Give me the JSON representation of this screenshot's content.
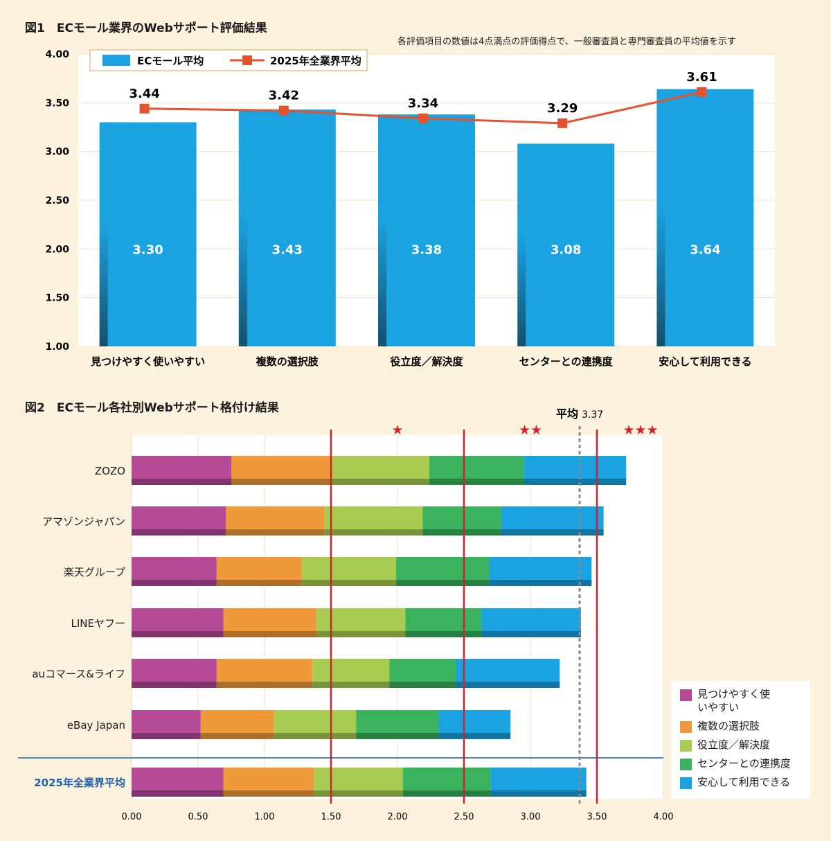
{
  "figure1": {
    "title": "図1　ECモール業界のWebサポート評価結果",
    "note": "各評価項目の数値は4点満点の評価得点で、一般審査員と専門審査員の平均値を示す",
    "chart_data": {
      "type": "bar",
      "categories": [
        "見つけやすく使いやすい",
        "複数の選択肢",
        "役立度／解決度",
        "センターとの連携度",
        "安心して利用できる"
      ],
      "series": [
        {
          "name": "ECモール平均",
          "kind": "bar",
          "values": [
            3.3,
            3.43,
            3.38,
            3.08,
            3.64
          ],
          "labels": [
            "3.30",
            "3.43",
            "3.38",
            "3.08",
            "3.64"
          ],
          "color": "#1aa3e0"
        },
        {
          "name": "2025年全業界平均",
          "kind": "line",
          "values": [
            3.44,
            3.42,
            3.34,
            3.29,
            3.61
          ],
          "labels": [
            "3.44",
            "3.42",
            "3.34",
            "3.29",
            "3.61"
          ],
          "color": "#e5522e"
        }
      ],
      "ylim": [
        1.0,
        4.0
      ],
      "yticks": [
        "1.00",
        "1.50",
        "2.00",
        "2.50",
        "3.00",
        "3.50",
        "4.00"
      ],
      "legend": "top-left",
      "grid": true
    }
  },
  "figure2": {
    "title": "図2　ECモール各社別Webサポート格付け結果",
    "average_label": "平均",
    "average_value_label": "3.37",
    "average_value": 3.37,
    "chart_data": {
      "type": "bar",
      "orientation": "horizontal",
      "stacked": true,
      "categories": [
        "ZOZO",
        "アマゾンジャパン",
        "楽天グループ",
        "LINEヤフー",
        "auコマース&ライフ",
        "eBay Japan",
        "2025年全業界平均"
      ],
      "series": [
        {
          "name": "見つけやすく使いやすい",
          "color": "#b54a97",
          "values": [
            0.75,
            0.71,
            0.64,
            0.69,
            0.64,
            0.52,
            0.69
          ]
        },
        {
          "name": "複数の選択肢",
          "color": "#f0993a",
          "values": [
            0.75,
            0.74,
            0.64,
            0.7,
            0.72,
            0.55,
            0.68
          ]
        },
        {
          "name": "役立度／解決度",
          "color": "#a8cc52",
          "values": [
            0.74,
            0.74,
            0.71,
            0.67,
            0.58,
            0.62,
            0.67
          ]
        },
        {
          "name": "センターとの連携度",
          "color": "#3ab25e",
          "values": [
            0.71,
            0.59,
            0.7,
            0.57,
            0.5,
            0.62,
            0.66
          ]
        },
        {
          "name": "安心して利用できる",
          "color": "#1aa3e0",
          "values": [
            0.77,
            0.77,
            0.77,
            0.75,
            0.78,
            0.54,
            0.72
          ]
        }
      ],
      "xlim": [
        0,
        4.0
      ],
      "xticks": [
        "0.00",
        "0.50",
        "1.00",
        "1.50",
        "2.00",
        "2.50",
        "3.00",
        "3.50",
        "4.00"
      ],
      "thresholds": [
        1.5,
        2.5,
        3.5
      ],
      "rating_stars": [
        "★",
        "★★",
        "★★★"
      ],
      "legend": "bottom-right"
    }
  }
}
